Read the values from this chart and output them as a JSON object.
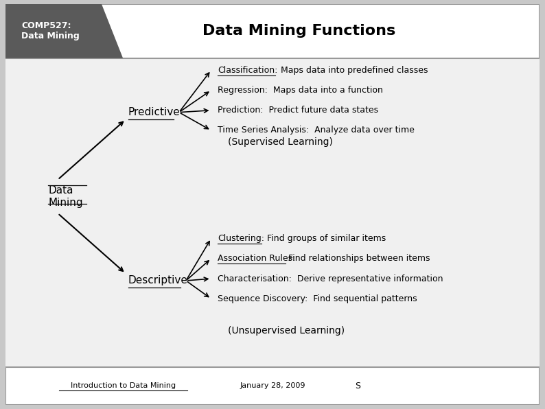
{
  "title": "Data Mining Functions",
  "header_label": "COMP527:\nData Mining",
  "header_bg": "#5a5a5a",
  "header_text_color": "#ffffff",
  "title_color": "#000000",
  "bg_color": "#e8e8e8",
  "content_bg": "#f0f0f0",
  "footer_bg": "#f0f0f0",
  "data_mining_label": "Data\nMining",
  "predictive_label": "Predictive",
  "descriptive_label": "Descriptive",
  "supervised_label": "(Supervised Learning)",
  "unsupervised_label": "(Unsupervised Learning)",
  "predictive_items": [
    "Classification:  Maps data into predefined classes",
    "Regression:  Maps data into a function",
    "Prediction:  Predict future data states",
    "Time Series Analysis:  Analyze data over time"
  ],
  "descriptive_items": [
    "Clustering:  Find groups of similar items",
    "Association Rules: Find relationships between items",
    "Characterisation:  Derive representative information",
    "Sequence Discovery:  Find sequential patterns"
  ],
  "footer_left": "Introduction to Data Mining",
  "footer_center": "January 28, 2009",
  "footer_right": "S"
}
